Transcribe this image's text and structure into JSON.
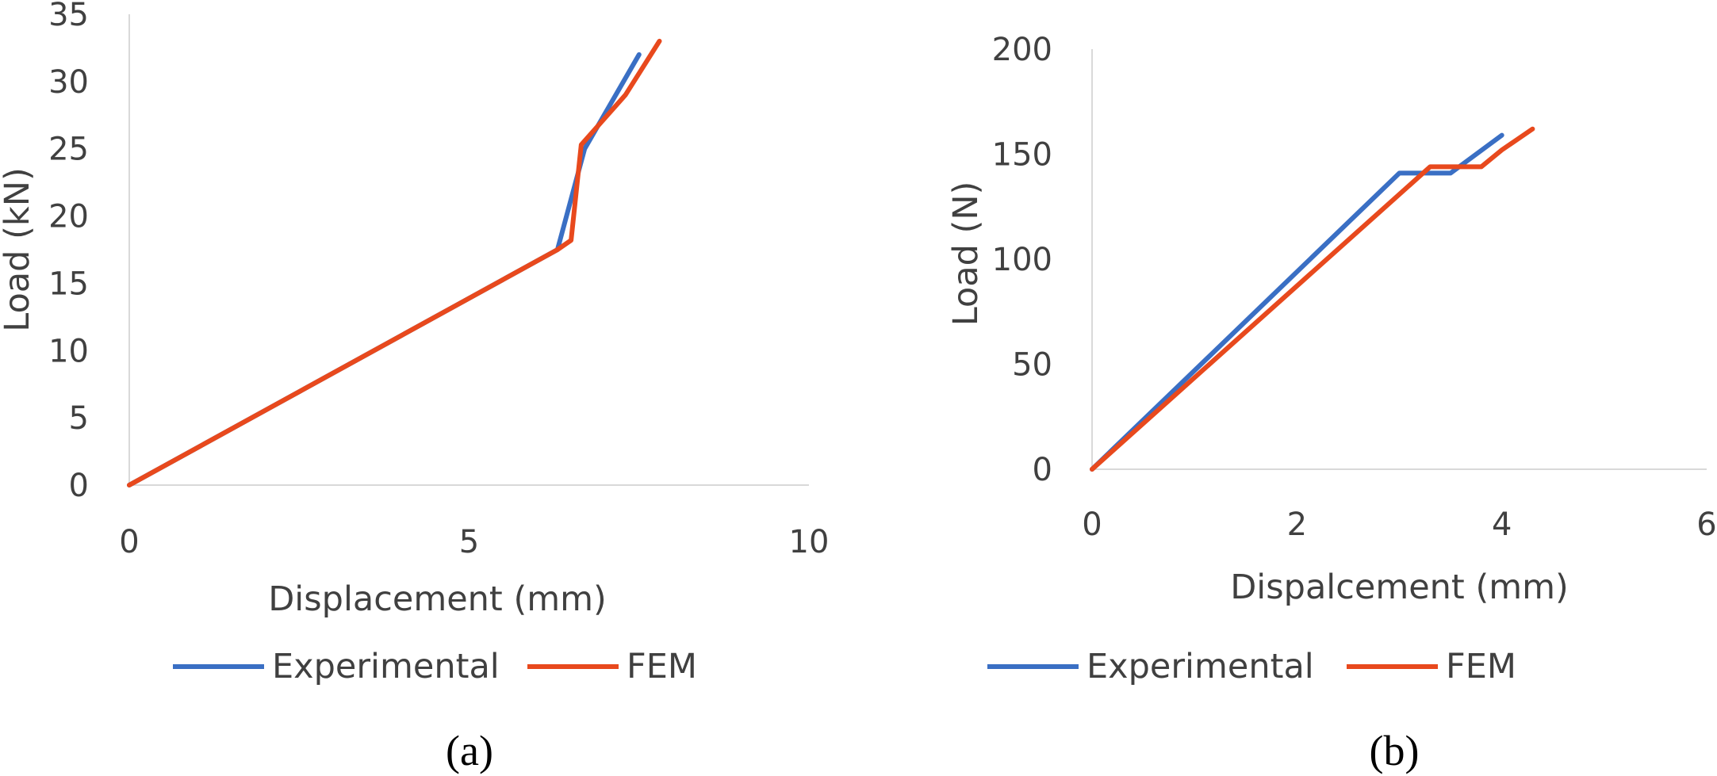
{
  "colors": {
    "experimental": "#3A6FC4",
    "fem": "#E8491D",
    "axis": "#D9D9D9",
    "text": "#404040"
  },
  "chart_data": [
    {
      "id": "a",
      "type": "line",
      "caption": "(a)",
      "xlabel": "Displacement (mm)",
      "ylabel": "Load (kN)",
      "xlim": [
        0,
        10
      ],
      "ylim": [
        0,
        35
      ],
      "xticks": [
        0,
        5,
        10
      ],
      "yticks": [
        0,
        5,
        10,
        15,
        20,
        25,
        30,
        35
      ],
      "grid": false,
      "legend": "bottom",
      "series": [
        {
          "name": "Experimental",
          "color": "#3A6FC4",
          "points": [
            [
              0,
              0
            ],
            [
              6.3,
              17.5
            ],
            [
              6.7,
              25
            ],
            [
              7.5,
              32
            ]
          ]
        },
        {
          "name": "FEM",
          "color": "#E8491D",
          "points": [
            [
              0,
              0
            ],
            [
              6.3,
              17.5
            ],
            [
              6.5,
              18.2
            ],
            [
              6.65,
              25.3
            ],
            [
              7.3,
              29
            ],
            [
              7.8,
              33
            ]
          ]
        }
      ]
    },
    {
      "id": "b",
      "type": "line",
      "caption": "(b)",
      "xlabel": "Dispalcement (mm)",
      "ylabel": "Load (N)",
      "xlim": [
        0,
        6
      ],
      "ylim": [
        0,
        200
      ],
      "xticks": [
        0,
        2,
        4,
        6
      ],
      "yticks": [
        0,
        50,
        100,
        150,
        200
      ],
      "grid": false,
      "legend": "bottom",
      "series": [
        {
          "name": "Experimental",
          "color": "#3A6FC4",
          "points": [
            [
              0,
              0
            ],
            [
              3.0,
              141
            ],
            [
              3.5,
              141
            ],
            [
              4.0,
              159
            ]
          ]
        },
        {
          "name": "FEM",
          "color": "#E8491D",
          "points": [
            [
              0,
              0
            ],
            [
              3.3,
              144
            ],
            [
              3.8,
              144
            ],
            [
              4.0,
              152
            ],
            [
              4.3,
              162
            ]
          ]
        }
      ]
    }
  ]
}
